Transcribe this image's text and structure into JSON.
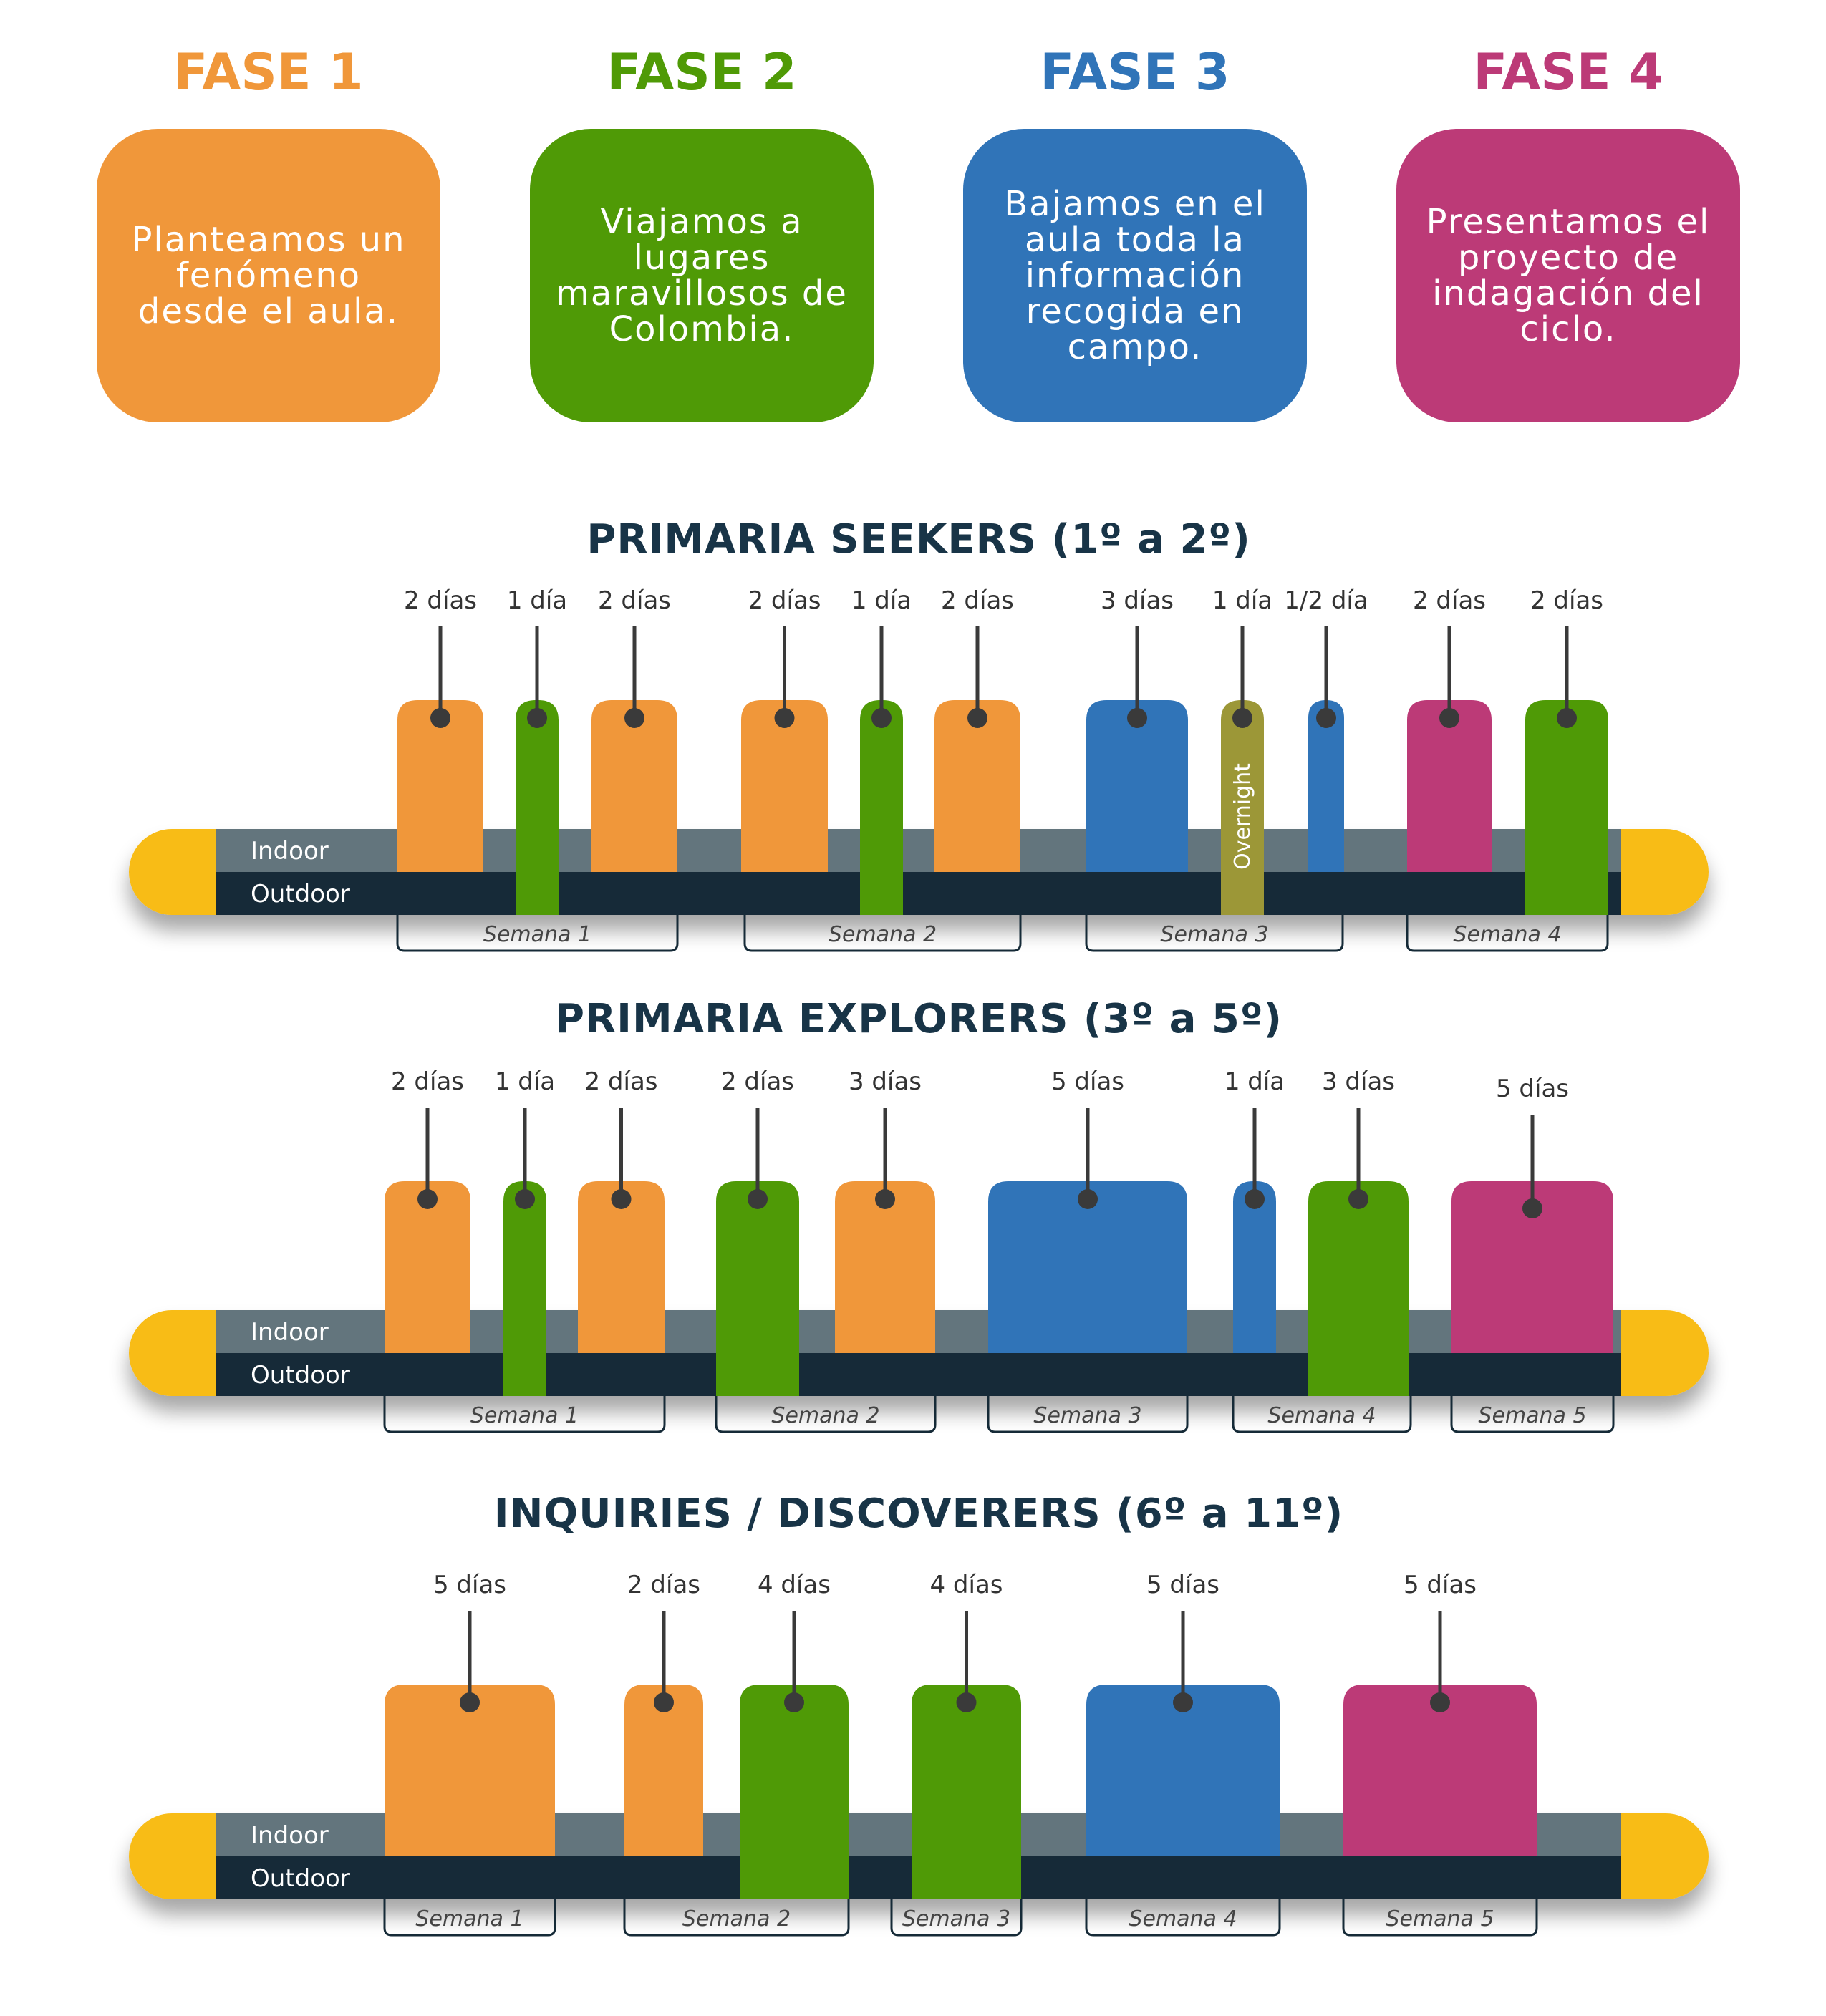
{
  "colors": {
    "fase1": "#F0973A",
    "fase2": "#4F9A06",
    "fase3": "#3074B8",
    "fase4": "#BC3A77",
    "overnight": "#9C9737",
    "indoor": "#64747D",
    "outdoor": "#152A37",
    "cap": "#F8BC18",
    "pin": "#3A3A3A"
  },
  "phases": [
    {
      "title": "FASE 1",
      "color": "fase1",
      "text": [
        "Planteamos un",
        "fenómeno",
        "desde el aula."
      ]
    },
    {
      "title": "FASE 2",
      "color": "fase2",
      "text": [
        "Viajamos a",
        "lugares",
        "maravillosos de",
        "Colombia."
      ]
    },
    {
      "title": "FASE 3",
      "color": "fase3",
      "text": [
        "Bajamos en el",
        "aula toda la",
        "información",
        "recogida en",
        "campo."
      ]
    },
    {
      "title": "FASE 4",
      "color": "fase4",
      "text": [
        "Presentamos el",
        "proyecto de",
        "indagación del",
        "ciclo."
      ]
    }
  ],
  "track_labels": {
    "indoor": "Indoor",
    "outdoor": "Outdoor"
  },
  "sections": [
    {
      "title": "PRIMARIA SEEKERS (1º a 2º)",
      "activities": [
        {
          "label": "2 días",
          "phase": "fase1",
          "days": 2,
          "outdoor": false
        },
        {
          "label": "1 día",
          "phase": "fase2",
          "days": 1,
          "outdoor": true
        },
        {
          "label": "2 días",
          "phase": "fase1",
          "days": 2,
          "outdoor": false
        },
        {
          "label": "2 días",
          "phase": "fase1",
          "days": 2,
          "outdoor": false
        },
        {
          "label": "1 día",
          "phase": "fase2",
          "days": 1,
          "outdoor": true
        },
        {
          "label": "2 días",
          "phase": "fase1",
          "days": 2,
          "outdoor": false
        },
        {
          "label": "3 días",
          "phase": "fase3",
          "days": 3,
          "outdoor": false
        },
        {
          "label": "1 día",
          "phase": "overnight",
          "days": 1,
          "outdoor": true,
          "inner_text": "Overnight"
        },
        {
          "label": "1/2 día",
          "phase": "fase3",
          "days": 0.5,
          "outdoor": false
        },
        {
          "label": "2 días",
          "phase": "fase4",
          "days": 2,
          "outdoor": false
        },
        {
          "label": "2 días",
          "phase": "fase2",
          "days": 2,
          "outdoor": true
        }
      ],
      "weeks": [
        "Semana 1",
        "Semana 2",
        "Semana 3",
        "Semana 4"
      ]
    },
    {
      "title": "PRIMARIA EXPLORERS (3º a 5º)",
      "activities": [
        {
          "label": "2 días",
          "phase": "fase1",
          "days": 2,
          "outdoor": false
        },
        {
          "label": "1 día",
          "phase": "fase2",
          "days": 1,
          "outdoor": true
        },
        {
          "label": "2 días",
          "phase": "fase1",
          "days": 2,
          "outdoor": false
        },
        {
          "label": "2 días",
          "phase": "fase2",
          "days": 2,
          "outdoor": true
        },
        {
          "label": "3 días",
          "phase": "fase1",
          "days": 3,
          "outdoor": false
        },
        {
          "label": "5 días",
          "phase": "fase3",
          "days": 5,
          "outdoor": false
        },
        {
          "label": "1 día",
          "phase": "fase3",
          "days": 1,
          "outdoor": false
        },
        {
          "label": "3 días",
          "phase": "fase2",
          "days": 3,
          "outdoor": true
        },
        {
          "label": "5 días",
          "phase": "fase4",
          "days": 5,
          "outdoor": false
        }
      ],
      "weeks": [
        "Semana 1",
        "Semana 2",
        "Semana 3",
        "Semana 4",
        "Semana 5"
      ]
    },
    {
      "title": "INQUIRIES / DISCOVERERS (6º a 11º)",
      "activities": [
        {
          "label": "5 días",
          "phase": "fase1",
          "days": 5,
          "outdoor": false
        },
        {
          "label": "2 días",
          "phase": "fase1",
          "days": 2,
          "outdoor": false
        },
        {
          "label": "4 días",
          "phase": "fase2",
          "days": 4,
          "outdoor": true
        },
        {
          "label": "4 días",
          "phase": "fase2",
          "days": 4,
          "outdoor": true
        },
        {
          "label": "5 días",
          "phase": "fase3",
          "days": 5,
          "outdoor": false
        },
        {
          "label": "5 días",
          "phase": "fase4",
          "days": 5,
          "outdoor": false
        }
      ],
      "weeks": [
        "Semana 1",
        "Semana 2",
        "Semana 3",
        "Semana 4",
        "Semana 5"
      ]
    }
  ]
}
